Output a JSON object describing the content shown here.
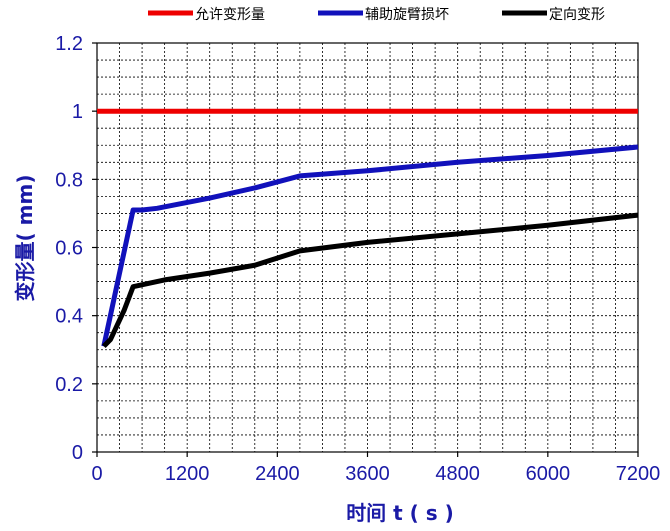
{
  "chart_data": {
    "type": "line",
    "xlabel": "时间 t ( s )",
    "ylabel": "变形量( mm)",
    "xlim": [
      0,
      7200
    ],
    "ylim": [
      0,
      1.2
    ],
    "x_ticks": [
      0,
      1200,
      2400,
      3600,
      4800,
      6000,
      7200
    ],
    "y_ticks": [
      0,
      0.2,
      0.4,
      0.6,
      0.8,
      1,
      1.2
    ],
    "x_tick_labels": [
      "0",
      "1200",
      "2400",
      "3600",
      "4800",
      "6000",
      "7200"
    ],
    "y_tick_labels": [
      "0",
      "0.2",
      "0.4",
      "0.6",
      "0.8",
      "1",
      "1.2"
    ],
    "grid": true,
    "legend_position": "top",
    "series": [
      {
        "name": "允许变形量",
        "color": "#ee0000",
        "points": [
          [
            0,
            1.0
          ],
          [
            7200,
            1.0
          ]
        ]
      },
      {
        "name": "辅助旋臂损坏",
        "color": "#1111bb",
        "points": [
          [
            90,
            0.31
          ],
          [
            480,
            0.71
          ],
          [
            600,
            0.71
          ],
          [
            800,
            0.715
          ],
          [
            1500,
            0.745
          ],
          [
            2100,
            0.775
          ],
          [
            2700,
            0.81
          ],
          [
            3600,
            0.825
          ],
          [
            4800,
            0.85
          ],
          [
            6000,
            0.87
          ],
          [
            7200,
            0.895
          ]
        ]
      },
      {
        "name": "定向变形",
        "color": "#000000",
        "points": [
          [
            90,
            0.31
          ],
          [
            180,
            0.33
          ],
          [
            360,
            0.415
          ],
          [
            480,
            0.485
          ],
          [
            900,
            0.505
          ],
          [
            1500,
            0.525
          ],
          [
            2100,
            0.548
          ],
          [
            2700,
            0.59
          ],
          [
            3600,
            0.615
          ],
          [
            4800,
            0.64
          ],
          [
            6000,
            0.665
          ],
          [
            7200,
            0.695
          ]
        ]
      }
    ]
  }
}
